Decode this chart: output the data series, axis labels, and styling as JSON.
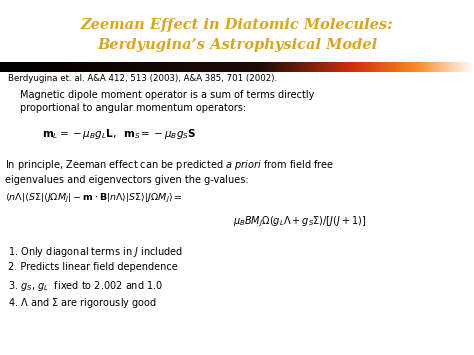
{
  "title_line1": "Zeeman Effect in Diatomic Molecules:",
  "title_line2": "Berdyugina’s Astrophysical Model",
  "title_color": "#DAA520",
  "bg_color": "#FFFFFF",
  "reference": "Berdyugina et. al. A&A 412, 513 (2003), A&A 385, 701 (2002).",
  "text1": "Magnetic dipole moment operator is a sum of terms directly\nproportional to angular momentum operators:",
  "formula1": "$\\mathbf{m}_L = -\\mu_B g_L \\mathbf{L}, \\;\\; \\mathbf{m}_S = -\\mu_B g_S \\mathbf{S}$",
  "text2": "In principle, Zeeman effect can be predicted $\\mathit{a}$ $\\mathit{priori}$ from field free\neigenvalues and eigenvectors given the g-values:",
  "formula2": "$\\langle n\\Lambda|\\langle S\\Sigma|\\langle J\\Omega M_J| - \\mathbf{m}\\cdot\\mathbf{B}|n\\Lambda\\rangle|S\\Sigma\\rangle|J\\Omega M_J\\rangle =$",
  "formula3": "$\\mu_B B M_J \\Omega (g_L \\Lambda + g_S \\Sigma) / [J(J+1)]$",
  "list_item1": "1. Only diagonal terms in $\\mathit{J}$ included",
  "list_item2": "2. Predicts linear field dependence",
  "list_item3": "3. $g_S$, $g_L$  fixed to 2.002 and 1.0",
  "list_item4": "4. $\\Lambda$ and $\\Sigma$ are rigorously good",
  "text_color": "#000000",
  "title_fontsize": 10.5,
  "ref_fontsize": 6.2,
  "body_fontsize": 7.0,
  "formula_fontsize": 7.5,
  "list_fontsize": 7.0
}
